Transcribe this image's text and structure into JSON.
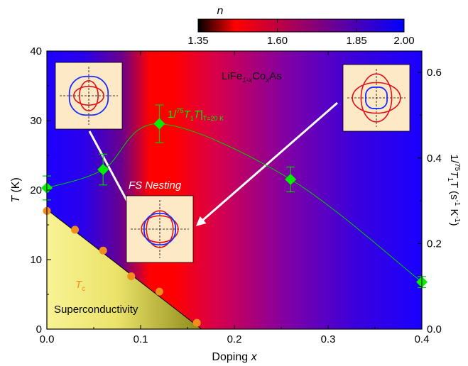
{
  "chart_data": {
    "type": "scatter",
    "xlabel_prefix": "Doping ",
    "xlabel_var": "x",
    "ylabel_left_var": "T",
    "ylabel_left_unit": " (K)",
    "ylabel_right_parts": [
      "1/",
      "75",
      "T",
      "1",
      "T (s",
      "-1",
      " K",
      "-1",
      ")"
    ],
    "xlim": [
      0,
      0.4
    ],
    "ylim_left": [
      0,
      40
    ],
    "ylim_right": [
      0,
      0.65
    ],
    "xticks": [
      "0.0",
      "0.1",
      "0.2",
      "0.3",
      "0.4"
    ],
    "xtick_values": [
      0,
      0.1,
      0.2,
      0.3,
      0.4
    ],
    "yticks_left": [
      "0",
      "10",
      "20",
      "30",
      "40"
    ],
    "ytick_left_values": [
      0,
      10,
      20,
      30,
      40
    ],
    "yticks_right": [
      "0.0",
      "0.2",
      "0.4",
      "0.6"
    ],
    "ytick_right_values": [
      0,
      0.2,
      0.4,
      0.6
    ],
    "colorbar": {
      "label": "n",
      "ticks": [
        "1.35",
        "1.60",
        "1.85",
        "2.00"
      ],
      "tick_values": [
        1.35,
        1.6,
        1.85,
        2.0
      ],
      "range": [
        1.35,
        2.0
      ],
      "colors": [
        "#000000",
        "#ff0000",
        "#0000ff"
      ]
    },
    "series": [
      {
        "name_parts": [
          "1/",
          "75",
          "T",
          "1",
          "T|",
          "T=20 K"
        ],
        "axis": "right",
        "color": "#00ee00",
        "marker": "diamond",
        "x": [
          0.0,
          0.06,
          0.12,
          0.26,
          0.4
        ],
        "y": [
          0.33,
          0.373,
          0.48,
          0.35,
          0.11
        ],
        "err": [
          0.028,
          0.036,
          0.044,
          0.029,
          0.013
        ]
      },
      {
        "name": "T",
        "name_sub": "c",
        "axis": "left",
        "color": "#f28c1c",
        "marker": "circle",
        "x": [
          0.0,
          0.03,
          0.06,
          0.09,
          0.12,
          0.16
        ],
        "y": [
          17.0,
          14.3,
          11.3,
          7.6,
          5.4,
          0.9
        ]
      }
    ],
    "annotations": {
      "compound_parts": [
        "LiFe",
        "1-x",
        "Co",
        "x",
        "As"
      ],
      "fs_nesting": "FS Nesting",
      "superconductivity": "Superconductivity"
    },
    "superconducting_dome": {
      "x_end": 0.165,
      "tc_at_zero": 17.2
    },
    "bg_gradient": [
      {
        "x": 0.0,
        "color": "#1e00ff"
      },
      {
        "x": 0.04,
        "color": "#2a00ea"
      },
      {
        "x": 0.08,
        "color": "#6a008c"
      },
      {
        "x": 0.11,
        "color": "#ff0000"
      },
      {
        "x": 0.135,
        "color": "#ff0000"
      },
      {
        "x": 0.18,
        "color": "#d8004a"
      },
      {
        "x": 0.26,
        "color": "#7c00a8"
      },
      {
        "x": 0.33,
        "color": "#3a00dc"
      },
      {
        "x": 0.4,
        "color": "#1a00ff"
      }
    ],
    "colors": {
      "insetBg": "#fde9c6",
      "sc_light": "#f8f394",
      "sc_dark": "#8d8a18",
      "arrow": "#ffffff"
    }
  }
}
